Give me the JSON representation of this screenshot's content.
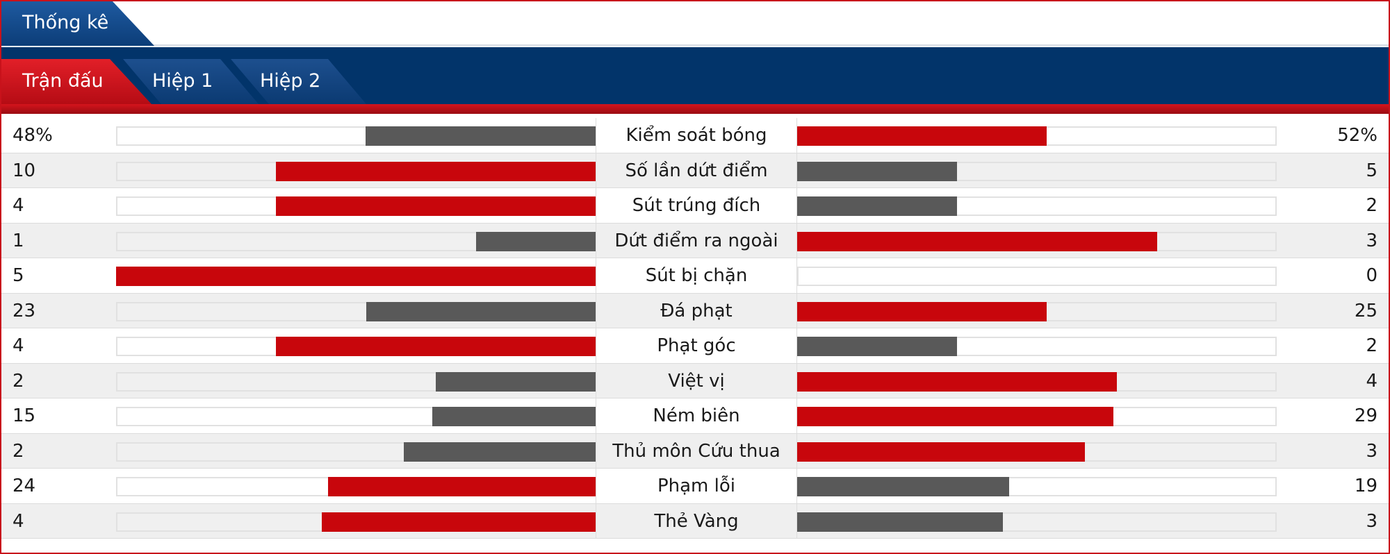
{
  "header": {
    "title": "Thống kê"
  },
  "tabs": [
    {
      "label": "Trận đấu",
      "active": true
    },
    {
      "label": "Hiệp 1",
      "active": false
    },
    {
      "label": "Hiệp 2",
      "active": false
    }
  ],
  "colors": {
    "red": "#c8060c",
    "gray": "#595959",
    "navy": "#02346a",
    "accent": "#c8121b"
  },
  "stats": [
    {
      "label": "Kiểm soát bóng",
      "home": "48%",
      "away": "52%",
      "home_share": 0.48,
      "away_share": 0.52
    },
    {
      "label": "Số lần dứt điểm",
      "home": "10",
      "away": "5",
      "home_share": 0.667,
      "away_share": 0.333
    },
    {
      "label": "Sút trúng đích",
      "home": "4",
      "away": "2",
      "home_share": 0.667,
      "away_share": 0.333
    },
    {
      "label": "Dứt điểm ra ngoài",
      "home": "1",
      "away": "3",
      "home_share": 0.25,
      "away_share": 0.75
    },
    {
      "label": "Sút bị chặn",
      "home": "5",
      "away": "0",
      "home_share": 1.0,
      "away_share": 0.0
    },
    {
      "label": "Đá phạt",
      "home": "23",
      "away": "25",
      "home_share": 0.479,
      "away_share": 0.521
    },
    {
      "label": "Phạt góc",
      "home": "4",
      "away": "2",
      "home_share": 0.667,
      "away_share": 0.333
    },
    {
      "label": "Việt vị",
      "home": "2",
      "away": "4",
      "home_share": 0.333,
      "away_share": 0.667
    },
    {
      "label": "Ném biên",
      "home": "15",
      "away": "29",
      "home_share": 0.341,
      "away_share": 0.659
    },
    {
      "label": "Thủ môn Cứu thua",
      "home": "2",
      "away": "3",
      "home_share": 0.4,
      "away_share": 0.6
    },
    {
      "label": "Phạm lỗi",
      "home": "24",
      "away": "19",
      "home_share": 0.558,
      "away_share": 0.442
    },
    {
      "label": "Thẻ Vàng",
      "home": "4",
      "away": "3",
      "home_share": 0.571,
      "away_share": 0.429
    }
  ]
}
